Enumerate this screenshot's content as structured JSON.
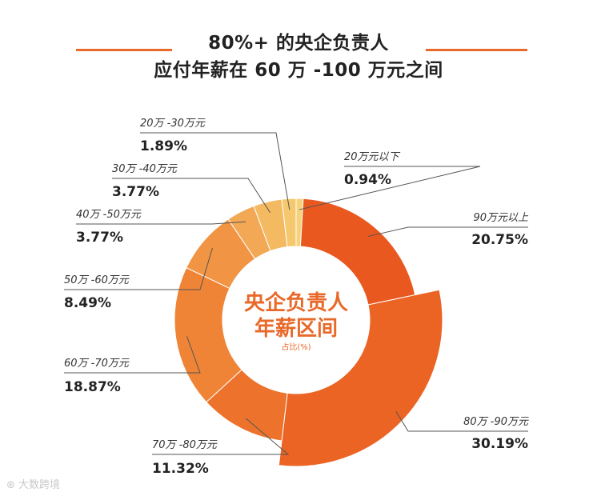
{
  "title": {
    "line1": "80%+ 的央企负责人",
    "line2": "应付年薪在 60 万 -100 万元之间"
  },
  "center_label": {
    "line1": "央企负责人",
    "line2": "年薪区间",
    "line3": "占比(%)"
  },
  "watermark": "大数跨境",
  "colors": {
    "accent": "#E8692A",
    "title_line": "#E8692A"
  },
  "chart_data": {
    "type": "pie",
    "donut": true,
    "unit": "%",
    "slices": [
      {
        "label": "20万元以下",
        "value": 0.94,
        "value_text": "0.94%",
        "color": "#F6D27A"
      },
      {
        "label": "90万元以上",
        "value": 20.75,
        "value_text": "20.75%",
        "color": "#E8581F"
      },
      {
        "label": "80万 -90万元",
        "value": 30.19,
        "value_text": "30.19%",
        "color": "#EB6424",
        "exploded": true
      },
      {
        "label": "70万 -80万元",
        "value": 11.32,
        "value_text": "11.32%",
        "color": "#ED722C"
      },
      {
        "label": "60万 -70万元",
        "value": 18.87,
        "value_text": "18.87%",
        "color": "#EF8436"
      },
      {
        "label": "50万 -60万元",
        "value": 8.49,
        "value_text": "8.49%",
        "color": "#F19544"
      },
      {
        "label": "40万 -50万元",
        "value": 3.77,
        "value_text": "3.77%",
        "color": "#F2A855"
      },
      {
        "label": "30万 -40万元",
        "value": 3.77,
        "value_text": "3.77%",
        "color": "#F4BA62"
      },
      {
        "label": "20万 -30万元",
        "value": 1.89,
        "value_text": "1.89%",
        "color": "#F5C86D"
      }
    ]
  }
}
